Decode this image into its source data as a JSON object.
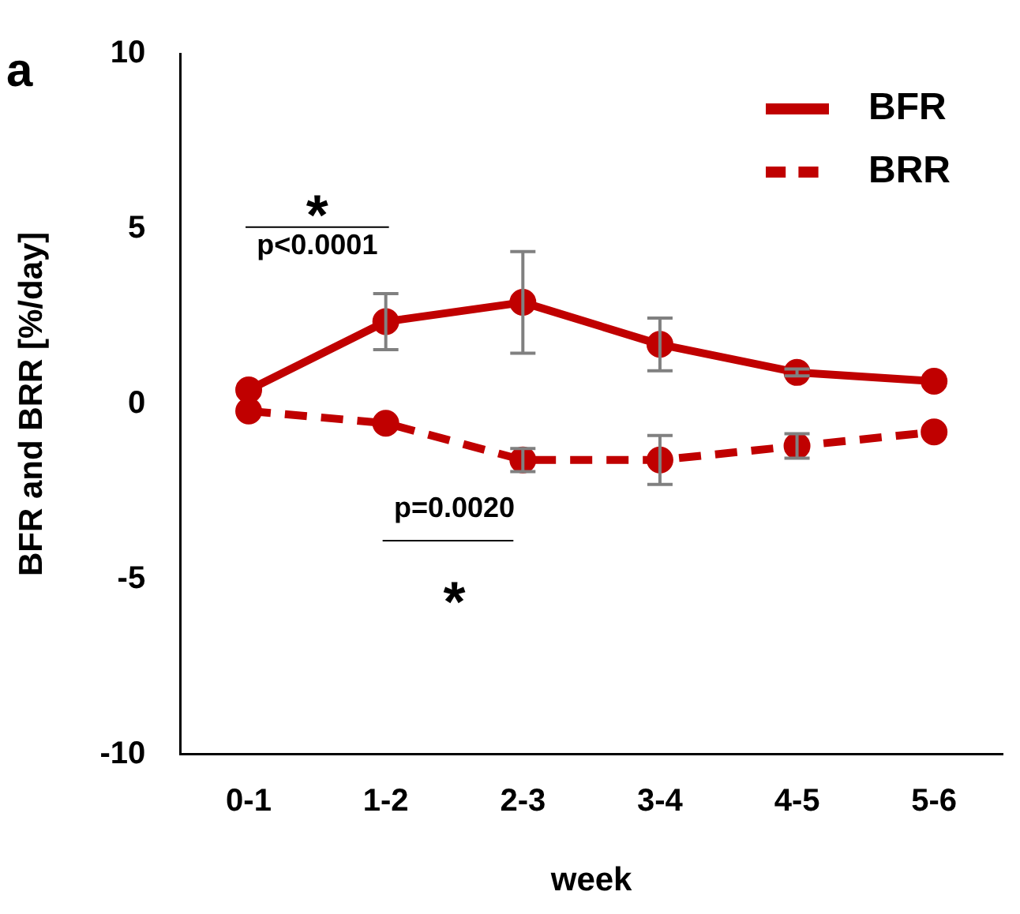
{
  "chart_data": {
    "type": "line",
    "title": "a",
    "xlabel": "week",
    "ylabel": "BFR and BRR [%/day]",
    "categories": [
      "0-1",
      "1-2",
      "2-3",
      "3-4",
      "4-5",
      "5-6"
    ],
    "series": [
      {
        "name": "BFR",
        "color": "#c00000",
        "line_style": "solid",
        "values": [
          0.4,
          2.35,
          2.9,
          1.7,
          0.9,
          0.65
        ],
        "errors": [
          null,
          0.8,
          1.45,
          0.75,
          0.1,
          null
        ]
      },
      {
        "name": "BRR",
        "color": "#c00000",
        "line_style": "dashed",
        "values": [
          -0.2,
          -0.55,
          -1.6,
          -1.6,
          -1.2,
          -0.8
        ],
        "errors": [
          null,
          null,
          0.33,
          0.7,
          0.35,
          null
        ]
      }
    ],
    "ylim": [
      -10,
      10
    ],
    "yticks": [
      -10,
      -5,
      0,
      5,
      10
    ],
    "grid": false,
    "legend": "top right",
    "marker": "circle",
    "annotations": [
      "*",
      "p<0.0001",
      "p=0.0020",
      "*"
    ]
  }
}
